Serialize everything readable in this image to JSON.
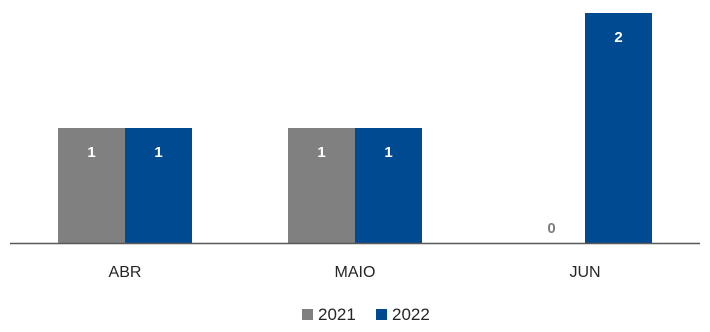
{
  "chart_data": {
    "type": "bar",
    "categories": [
      "ABR",
      "MAIO",
      "JUN"
    ],
    "series": [
      {
        "name": "2021",
        "values": [
          1,
          1,
          0
        ],
        "color": "#808080"
      },
      {
        "name": "2022",
        "values": [
          1,
          1,
          2
        ],
        "color": "#004a91"
      }
    ],
    "title": "",
    "xlabel": "",
    "ylabel": "",
    "ylim": [
      0,
      2
    ],
    "grid": false,
    "data_labels": true,
    "legend_position": "bottom",
    "axis_color": "#595959"
  }
}
